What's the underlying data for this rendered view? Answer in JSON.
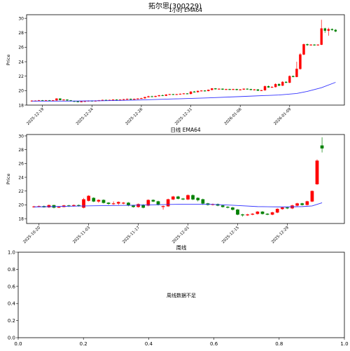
{
  "figure": {
    "title": "拓尔思(300229)"
  },
  "chart_data": [
    {
      "type": "candlestick",
      "title": "1小时 EMA64",
      "ylabel": "Price",
      "xlabel": "",
      "ylim": [
        18,
        30.5
      ],
      "yticks": [
        18,
        20,
        22,
        24,
        26,
        28,
        30
      ],
      "xticks": [
        {
          "i": 3,
          "label": "2025-12-19"
        },
        {
          "i": 17,
          "label": "2025-12-24"
        },
        {
          "i": 31,
          "label": "2025-12-26"
        },
        {
          "i": 45,
          "label": "2025-12-31"
        },
        {
          "i": 59,
          "label": "2026-01-06"
        },
        {
          "i": 73,
          "label": "2026-01-09"
        }
      ],
      "x_count": 90,
      "up_color": "#ff0000",
      "down_color": "#008000",
      "ema_color": "#3333ff",
      "candles": [
        [
          0,
          18.55,
          18.6,
          18.65,
          18.5
        ],
        [
          1,
          18.6,
          18.6,
          18.65,
          18.55
        ],
        [
          2,
          18.6,
          18.65,
          18.7,
          18.55
        ],
        [
          3,
          18.65,
          18.6,
          18.7,
          18.55
        ],
        [
          4,
          18.6,
          18.65,
          18.7,
          18.55
        ],
        [
          5,
          18.65,
          18.6,
          18.7,
          18.55
        ],
        [
          6,
          18.6,
          18.65,
          18.7,
          18.55
        ],
        [
          7,
          18.65,
          18.9,
          18.95,
          18.6
        ],
        [
          8,
          18.9,
          18.7,
          18.95,
          18.65
        ],
        [
          9,
          18.7,
          18.75,
          18.8,
          18.65
        ],
        [
          10,
          18.75,
          18.65,
          18.8,
          18.6
        ],
        [
          11,
          18.65,
          18.55,
          18.7,
          18.5
        ],
        [
          12,
          18.55,
          18.5,
          18.6,
          18.45
        ],
        [
          13,
          18.5,
          18.45,
          18.55,
          18.4
        ],
        [
          14,
          18.45,
          18.5,
          18.55,
          18.4
        ],
        [
          15,
          18.5,
          18.55,
          18.6,
          18.45
        ],
        [
          16,
          18.55,
          18.6,
          18.65,
          18.5
        ],
        [
          17,
          18.6,
          18.55,
          18.65,
          18.5
        ],
        [
          18,
          18.55,
          18.6,
          18.65,
          18.5
        ],
        [
          19,
          18.6,
          18.65,
          18.7,
          18.55
        ],
        [
          20,
          18.65,
          18.7,
          18.75,
          18.6
        ],
        [
          21,
          18.7,
          18.65,
          18.75,
          18.6
        ],
        [
          22,
          18.65,
          18.7,
          18.75,
          18.6
        ],
        [
          23,
          18.7,
          18.75,
          18.8,
          18.65
        ],
        [
          24,
          18.75,
          18.7,
          18.8,
          18.65
        ],
        [
          25,
          18.7,
          18.75,
          18.8,
          18.65
        ],
        [
          26,
          18.75,
          18.8,
          18.85,
          18.7
        ],
        [
          27,
          18.8,
          18.85,
          18.9,
          18.75
        ],
        [
          28,
          18.85,
          18.8,
          18.9,
          18.75
        ],
        [
          29,
          18.8,
          18.85,
          18.9,
          18.75
        ],
        [
          30,
          18.85,
          18.9,
          18.95,
          18.8
        ],
        [
          31,
          18.9,
          18.95,
          19.0,
          18.85
        ],
        [
          32,
          18.95,
          19.1,
          19.15,
          18.9
        ],
        [
          33,
          19.1,
          19.2,
          19.3,
          19.05
        ],
        [
          34,
          19.2,
          19.15,
          19.3,
          19.1
        ],
        [
          35,
          19.15,
          19.25,
          19.3,
          19.1
        ],
        [
          36,
          19.25,
          19.35,
          19.4,
          19.2
        ],
        [
          37,
          19.35,
          19.3,
          19.45,
          19.25
        ],
        [
          38,
          19.3,
          19.45,
          19.5,
          19.25
        ],
        [
          39,
          19.45,
          19.5,
          19.55,
          19.4
        ],
        [
          40,
          19.5,
          19.45,
          19.55,
          19.4
        ],
        [
          41,
          19.45,
          19.5,
          19.55,
          19.4
        ],
        [
          42,
          19.5,
          19.55,
          19.6,
          19.45
        ],
        [
          43,
          19.55,
          19.6,
          19.65,
          19.5
        ],
        [
          44,
          19.6,
          19.55,
          19.65,
          19.5
        ],
        [
          45,
          19.55,
          19.85,
          19.9,
          19.5
        ],
        [
          46,
          19.85,
          19.8,
          19.95,
          19.75
        ],
        [
          47,
          19.8,
          19.95,
          20.0,
          19.75
        ],
        [
          48,
          19.95,
          20.0,
          20.05,
          19.9
        ],
        [
          49,
          20.0,
          19.95,
          20.05,
          19.9
        ],
        [
          50,
          19.95,
          20.1,
          20.15,
          19.9
        ],
        [
          51,
          20.1,
          20.3,
          20.35,
          20.05
        ],
        [
          52,
          20.3,
          20.2,
          20.35,
          20.15
        ],
        [
          53,
          20.2,
          20.25,
          20.3,
          20.15
        ],
        [
          54,
          20.25,
          20.15,
          20.3,
          20.1
        ],
        [
          55,
          20.15,
          20.2,
          20.25,
          20.1
        ],
        [
          56,
          20.2,
          20.15,
          20.25,
          20.1
        ],
        [
          57,
          20.15,
          20.2,
          20.25,
          20.1
        ],
        [
          58,
          20.2,
          20.1,
          20.25,
          20.05
        ],
        [
          59,
          20.1,
          20.15,
          20.2,
          20.05
        ],
        [
          60,
          20.15,
          20.25,
          20.3,
          20.1
        ],
        [
          61,
          20.25,
          20.2,
          20.3,
          20.15
        ],
        [
          62,
          20.2,
          20.1,
          20.25,
          20.05
        ],
        [
          63,
          20.1,
          20.15,
          20.2,
          20.05
        ],
        [
          64,
          20.15,
          20.0,
          20.2,
          19.95
        ],
        [
          65,
          20.0,
          20.05,
          20.1,
          19.95
        ],
        [
          66,
          20.05,
          20.6,
          20.7,
          20.0
        ],
        [
          67,
          20.6,
          20.45,
          20.7,
          20.4
        ],
        [
          68,
          20.45,
          20.5,
          20.6,
          20.4
        ],
        [
          69,
          20.5,
          20.9,
          21.0,
          20.45
        ],
        [
          70,
          20.9,
          20.7,
          21.0,
          20.65
        ],
        [
          71,
          20.7,
          21.2,
          21.3,
          20.65
        ],
        [
          72,
          21.2,
          21.1,
          21.3,
          21.05
        ],
        [
          73,
          21.1,
          22.0,
          22.1,
          21.05
        ],
        [
          74,
          22.0,
          21.9,
          22.1,
          21.85
        ],
        [
          75,
          21.9,
          23.0,
          24.0,
          21.85
        ],
        [
          76,
          23.0,
          25.0,
          25.2,
          22.9
        ],
        [
          77,
          25.0,
          26.4,
          26.5,
          24.9
        ],
        [
          78,
          26.4,
          26.3,
          26.5,
          26.2
        ],
        [
          79,
          26.3,
          26.35,
          26.4,
          26.25
        ],
        [
          80,
          26.35,
          26.3,
          26.4,
          26.25
        ],
        [
          81,
          26.3,
          26.35,
          26.4,
          26.25
        ],
        [
          82,
          26.35,
          28.6,
          29.8,
          26.3
        ],
        [
          83,
          28.6,
          28.3,
          28.7,
          28.0
        ],
        [
          84,
          28.3,
          28.5,
          28.7,
          27.6
        ],
        [
          85,
          28.5,
          28.4,
          28.6,
          28.3
        ],
        [
          86,
          28.4,
          28.2,
          28.5,
          28.1
        ]
      ],
      "ema": [
        [
          0,
          18.55
        ],
        [
          10,
          18.55
        ],
        [
          20,
          18.6
        ],
        [
          30,
          18.7
        ],
        [
          40,
          18.85
        ],
        [
          50,
          19.0
        ],
        [
          60,
          19.2
        ],
        [
          70,
          19.4
        ],
        [
          75,
          19.6
        ],
        [
          78,
          19.9
        ],
        [
          82,
          20.4
        ],
        [
          86,
          21.15
        ]
      ]
    },
    {
      "type": "candlestick",
      "title": "日线 EMA64",
      "ylabel": "Price",
      "xlabel": "",
      "ylim": [
        17.3,
        30.2
      ],
      "yticks": [
        18,
        20,
        22,
        24,
        26,
        28,
        30
      ],
      "xticks": [
        {
          "i": 1,
          "label": "2025-10-20"
        },
        {
          "i": 11,
          "label": "2025-11-03"
        },
        {
          "i": 21,
          "label": "2025-11-17"
        },
        {
          "i": 31,
          "label": "2025-12-01"
        },
        {
          "i": 41,
          "label": "2025-12-15"
        },
        {
          "i": 51,
          "label": "2025-12-29"
        }
      ],
      "x_count": 64,
      "up_color": "#ff0000",
      "down_color": "#008000",
      "ema_color": "#3333ff",
      "candles": [
        [
          0,
          19.7,
          19.75,
          19.85,
          19.6
        ],
        [
          1,
          19.75,
          19.8,
          19.9,
          19.65
        ],
        [
          2,
          19.8,
          19.65,
          19.9,
          19.6
        ],
        [
          3,
          19.65,
          19.95,
          20.05,
          19.55
        ],
        [
          4,
          19.95,
          19.6,
          20.0,
          19.5
        ],
        [
          5,
          19.6,
          19.7,
          19.8,
          19.55
        ],
        [
          6,
          19.7,
          19.9,
          20.0,
          19.65
        ],
        [
          7,
          19.9,
          19.8,
          20.0,
          19.7
        ],
        [
          8,
          19.8,
          19.95,
          20.05,
          19.75
        ],
        [
          9,
          19.95,
          19.85,
          20.05,
          19.75
        ],
        [
          10,
          19.6,
          20.8,
          21.0,
          19.5
        ],
        [
          11,
          20.6,
          21.3,
          21.4,
          20.5
        ],
        [
          12,
          21.0,
          20.5,
          21.1,
          20.4
        ],
        [
          13,
          20.5,
          20.7,
          20.8,
          20.3
        ],
        [
          14,
          20.7,
          20.3,
          20.8,
          20.2
        ],
        [
          15,
          20.3,
          20.15,
          20.4,
          20.0
        ],
        [
          16,
          20.15,
          20.2,
          20.5,
          20.0
        ],
        [
          17,
          20.2,
          20.4,
          20.5,
          20.0
        ],
        [
          18,
          20.2,
          20.3,
          20.4,
          20.1
        ],
        [
          19,
          20.3,
          19.9,
          20.4,
          19.8
        ],
        [
          20,
          19.9,
          19.7,
          20.0,
          19.6
        ],
        [
          21,
          19.7,
          20.1,
          20.2,
          19.6
        ],
        [
          22,
          20.0,
          19.6,
          20.1,
          19.5
        ],
        [
          23,
          19.9,
          20.7,
          20.8,
          19.8
        ],
        [
          24,
          20.7,
          20.5,
          20.8,
          20.4
        ],
        [
          25,
          20.5,
          20.0,
          20.6,
          19.9
        ],
        [
          26,
          19.7,
          19.8,
          19.9,
          19.3
        ],
        [
          27,
          19.8,
          20.8,
          20.9,
          19.7
        ],
        [
          28,
          20.8,
          21.2,
          21.3,
          20.7
        ],
        [
          29,
          21.2,
          20.9,
          21.3,
          20.8
        ],
        [
          30,
          20.9,
          20.8,
          21.0,
          20.7
        ],
        [
          31,
          20.8,
          21.4,
          21.5,
          20.7
        ],
        [
          32,
          21.4,
          20.8,
          21.5,
          20.7
        ],
        [
          33,
          21.0,
          20.7,
          21.1,
          20.5
        ],
        [
          34,
          20.8,
          20.2,
          20.9,
          20.0
        ],
        [
          35,
          20.2,
          20.0,
          20.3,
          19.9
        ],
        [
          36,
          20.0,
          20.1,
          20.2,
          19.9
        ],
        [
          37,
          20.1,
          19.9,
          20.2,
          19.8
        ],
        [
          38,
          19.9,
          19.7,
          20.0,
          19.6
        ],
        [
          39,
          19.7,
          19.6,
          19.8,
          19.5
        ],
        [
          40,
          19.6,
          19.3,
          19.7,
          19.2
        ],
        [
          41,
          19.3,
          18.6,
          19.4,
          18.5
        ],
        [
          42,
          18.6,
          18.5,
          18.7,
          18.3
        ],
        [
          43,
          18.5,
          18.6,
          18.7,
          18.4
        ],
        [
          44,
          18.6,
          18.7,
          18.8,
          18.5
        ],
        [
          45,
          18.7,
          19.0,
          19.1,
          18.6
        ],
        [
          46,
          19.0,
          18.7,
          19.1,
          18.6
        ],
        [
          47,
          18.7,
          18.6,
          18.8,
          18.5
        ],
        [
          48,
          18.6,
          18.9,
          19.0,
          18.5
        ],
        [
          49,
          18.9,
          19.4,
          19.5,
          18.8
        ],
        [
          50,
          19.4,
          19.6,
          19.7,
          19.3
        ],
        [
          51,
          19.6,
          19.5,
          19.7,
          19.4
        ],
        [
          52,
          19.5,
          19.9,
          20.0,
          19.4
        ],
        [
          53,
          19.9,
          20.2,
          20.3,
          19.8
        ],
        [
          54,
          20.2,
          20.0,
          20.3,
          19.9
        ],
        [
          55,
          20.0,
          20.5,
          20.6,
          19.9
        ],
        [
          56,
          20.5,
          22.0,
          22.1,
          20.4
        ],
        [
          57,
          23.0,
          26.4,
          26.6,
          22.9
        ],
        [
          58,
          28.6,
          28.2,
          29.8,
          27.6
        ]
      ],
      "ema": [
        [
          0,
          19.7
        ],
        [
          10,
          19.85
        ],
        [
          20,
          19.95
        ],
        [
          30,
          20.1
        ],
        [
          35,
          20.1
        ],
        [
          40,
          19.95
        ],
        [
          45,
          19.75
        ],
        [
          50,
          19.7
        ],
        [
          54,
          19.75
        ],
        [
          56,
          19.85
        ],
        [
          58,
          20.3
        ]
      ]
    },
    {
      "type": "empty",
      "title": "周线",
      "annotation": "周线数据不足",
      "xlim": [
        0,
        1
      ],
      "ylim": [
        0,
        1
      ],
      "xticks": [
        0.0,
        0.2,
        0.4,
        0.6,
        0.8,
        1.0
      ],
      "yticks": [
        0.0,
        0.2,
        0.4,
        0.6,
        0.8,
        1.0
      ]
    }
  ]
}
